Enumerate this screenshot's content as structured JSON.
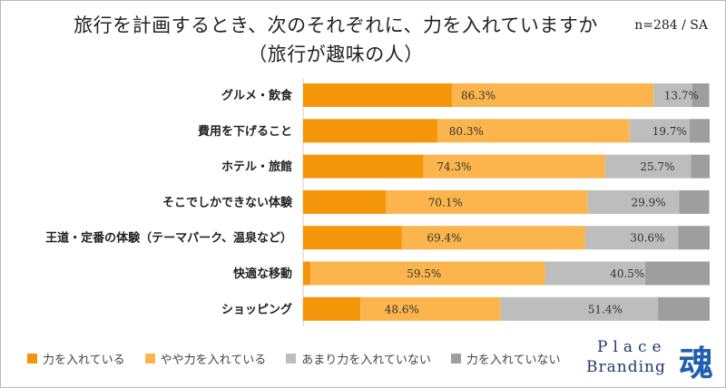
{
  "title_line1": "旅行を計画するとき、次のそれぞれに、力を入れていますか",
  "title_line2": "（旅行が趣味の人）",
  "sample_note": "n=284 / SA",
  "colors": {
    "series1": "#f5960a",
    "series2": "#fbb54c",
    "series3": "#bdbdbd",
    "series4": "#9e9e9e",
    "logo_text": "#1f3a6e",
    "logo_kanji": "#1f5fb0"
  },
  "chart_data": {
    "type": "bar",
    "orientation": "horizontal",
    "stacked": true,
    "categories": [
      "グルメ・飲食",
      "費用を下げること",
      "ホテル・旅館",
      "そこでしかできない体験",
      "王道・定番の体験（テーマパーク、温泉など）",
      "快適な移動",
      "ショッピング"
    ],
    "series": [
      {
        "name": "力を入れている",
        "values": [
          36.6,
          33.1,
          29.6,
          20.4,
          24.3,
          1.8,
          14.1
        ]
      },
      {
        "name": "やや力を入れている",
        "values": [
          49.6,
          47.2,
          44.7,
          49.6,
          45.1,
          57.7,
          34.5
        ]
      },
      {
        "name": "あまり力を入れていない",
        "values": [
          9.5,
          14.8,
          21.1,
          22.5,
          22.9,
          24.6,
          38.7
        ]
      },
      {
        "name": "力を入れていない",
        "values": [
          4.2,
          4.9,
          4.6,
          7.4,
          7.7,
          15.9,
          12.7
        ]
      }
    ],
    "combined_labels": {
      "positive": [
        "86.3%",
        "80.3%",
        "74.3%",
        "70.1%",
        "69.4%",
        "59.5%",
        "48.6%"
      ],
      "negative": [
        "13.7%",
        "19.7%",
        "25.7%",
        "29.9%",
        "30.6%",
        "40.5%",
        "51.4%"
      ]
    },
    "xlim": [
      0,
      100
    ],
    "grid": false,
    "legend_position": "bottom"
  },
  "logo": {
    "line1": "Place",
    "line2": "Branding",
    "kanji": "魂"
  }
}
